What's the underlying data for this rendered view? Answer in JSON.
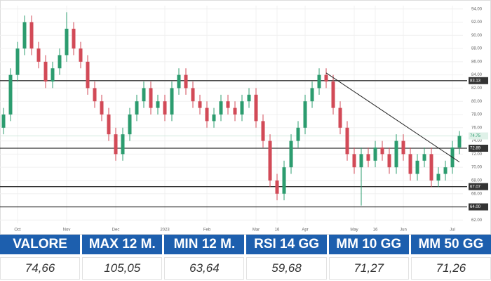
{
  "chart_data": {
    "type": "candlestick",
    "open": [
      76,
      78,
      84,
      88,
      92,
      88,
      86,
      83,
      85,
      87,
      91,
      88,
      86,
      82,
      80,
      78,
      75,
      72,
      75,
      78,
      80,
      82,
      79,
      80,
      78,
      82,
      84,
      82,
      80,
      79,
      77,
      78,
      80,
      79,
      78,
      80,
      81,
      77,
      74,
      68,
      66,
      70,
      74,
      76,
      80,
      82,
      84,
      83,
      79,
      76,
      72,
      70,
      72,
      71,
      73,
      72,
      70,
      74,
      72,
      69,
      71,
      72,
      68,
      69,
      70,
      73
    ],
    "high": [
      79,
      85,
      89,
      93,
      93,
      89,
      87,
      86,
      88,
      93.5,
      92,
      89,
      87,
      83,
      81,
      79,
      76,
      76,
      79,
      81,
      83,
      83,
      81,
      81,
      83,
      85,
      85,
      83,
      81,
      80,
      79,
      81,
      81,
      80,
      81,
      82,
      82,
      78,
      75,
      69,
      71,
      75,
      77,
      81,
      83,
      85,
      85,
      84,
      80,
      77,
      73,
      73,
      73,
      74,
      74,
      73,
      75,
      75,
      73,
      72,
      73,
      73,
      70,
      71,
      74,
      75.5
    ],
    "low": [
      75,
      77,
      83,
      87,
      87,
      85,
      82,
      82,
      84,
      86,
      87,
      85,
      81,
      79,
      77,
      74,
      71,
      71,
      74,
      77,
      79,
      78,
      78,
      77,
      77,
      81,
      81,
      79,
      78,
      76,
      76,
      77,
      78,
      77,
      77,
      79,
      76,
      73,
      67,
      65,
      65,
      69,
      73,
      75,
      79,
      81,
      82,
      78,
      75,
      71,
      69,
      64.2,
      70,
      70,
      71,
      69,
      69,
      71,
      68,
      68,
      70,
      67,
      67,
      68,
      69,
      72
    ],
    "close": [
      78,
      84,
      88,
      92,
      88,
      86,
      83,
      85,
      87,
      91,
      88,
      86,
      82,
      80,
      78,
      75,
      72,
      75,
      78,
      80,
      82,
      79,
      80,
      78,
      82,
      84,
      82,
      80,
      79,
      77,
      78,
      80,
      79,
      78,
      80,
      81,
      77,
      74,
      68,
      66,
      70,
      74,
      76,
      80,
      82,
      84,
      83,
      79,
      76,
      72,
      70,
      72,
      71,
      73,
      72,
      70,
      74,
      72,
      69,
      71,
      72,
      68,
      69,
      70,
      73,
      74.75
    ],
    "up_color": "#2c9c6f",
    "down_color": "#d24a57",
    "ylim": [
      61.5,
      94.5
    ],
    "yticks": [
      {
        "value": 62,
        "label": "62.00"
      },
      {
        "value": 64,
        "label": "64.00"
      },
      {
        "value": 66,
        "label": "66.00"
      },
      {
        "value": 68,
        "label": "68.00"
      },
      {
        "value": 70,
        "label": "70.00"
      },
      {
        "value": 72,
        "label": "72.00"
      },
      {
        "value": 74,
        "label": "74.00"
      },
      {
        "value": 76,
        "label": "76.00"
      },
      {
        "value": 78,
        "label": "78.00"
      },
      {
        "value": 80,
        "label": "80.00"
      },
      {
        "value": 82,
        "label": "82.00"
      },
      {
        "value": 84,
        "label": "84.00"
      },
      {
        "value": 86,
        "label": "86.00"
      },
      {
        "value": 88,
        "label": "88.00"
      },
      {
        "value": 90,
        "label": "90.00"
      },
      {
        "value": 92,
        "label": "92.00"
      },
      {
        "value": 94,
        "label": "94.00"
      }
    ],
    "xticks": [
      {
        "value": 2,
        "label": "Oct"
      },
      {
        "value": 9,
        "label": "Nov"
      },
      {
        "value": 16,
        "label": "Dec"
      },
      {
        "value": 23,
        "label": "2023"
      },
      {
        "value": 29,
        "label": "Feb"
      },
      {
        "value": 36,
        "label": "Mar"
      },
      {
        "value": 39,
        "label": "16"
      },
      {
        "value": 43,
        "label": "Apr"
      },
      {
        "value": 50,
        "label": "May"
      },
      {
        "value": 53,
        "label": "16"
      },
      {
        "value": 57,
        "label": "Jun"
      },
      {
        "value": 64,
        "label": "Jul"
      }
    ],
    "grid": true,
    "levels": [
      {
        "value": 83.13,
        "label": "83.13"
      },
      {
        "value": 72.89,
        "label": "72.89"
      },
      {
        "value": 67.07,
        "label": "67.07"
      },
      {
        "value": 64.0,
        "label": "64.00"
      }
    ],
    "last_price": {
      "value": 74.75,
      "label": "74.75"
    },
    "trendline": {
      "x": [
        46,
        65
      ],
      "y": [
        84.3,
        70.8
      ]
    }
  },
  "table": {
    "headers": [
      "VALORE",
      "MAX 12 M.",
      "MIN 12 M.",
      "RSI 14 GG",
      "MM 10 GG",
      "MM 50 GG"
    ],
    "values": [
      "74,66",
      "105,05",
      "63,64",
      "59,68",
      "71,27",
      "71,26"
    ]
  }
}
